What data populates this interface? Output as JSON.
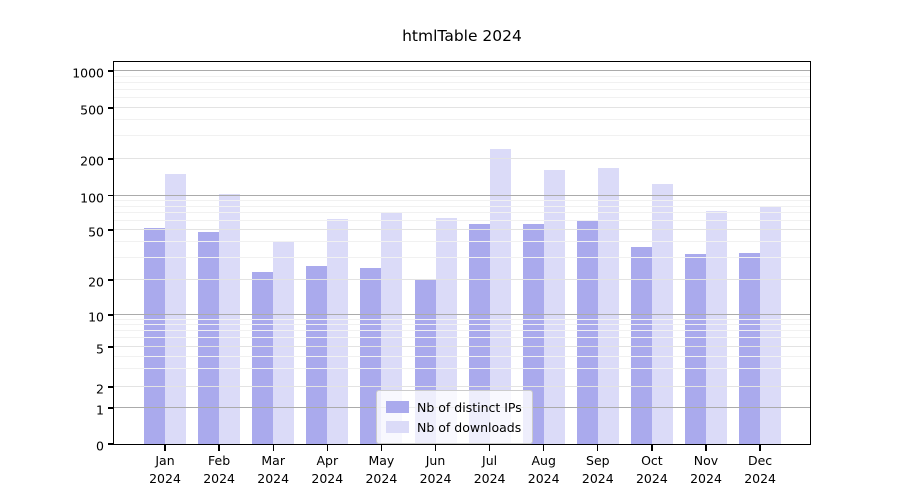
{
  "figure": {
    "title": "htmlTable 2024"
  },
  "chart_data": {
    "type": "bar",
    "title": "htmlTable 2024",
    "x_categories": [
      {
        "month": "Jan",
        "year": "2024"
      },
      {
        "month": "Feb",
        "year": "2024"
      },
      {
        "month": "Mar",
        "year": "2024"
      },
      {
        "month": "Apr",
        "year": "2024"
      },
      {
        "month": "May",
        "year": "2024"
      },
      {
        "month": "Jun",
        "year": "2024"
      },
      {
        "month": "Jul",
        "year": "2024"
      },
      {
        "month": "Aug",
        "year": "2024"
      },
      {
        "month": "Sep",
        "year": "2024"
      },
      {
        "month": "Oct",
        "year": "2024"
      },
      {
        "month": "Nov",
        "year": "2024"
      },
      {
        "month": "Dec",
        "year": "2024"
      }
    ],
    "series": [
      {
        "name": "Nb of distinct IPs",
        "color": "#aaaaed",
        "values": [
          52,
          48,
          23,
          26,
          25,
          20,
          56,
          57,
          60,
          37,
          32,
          33
        ]
      },
      {
        "name": "Nb of downloads",
        "color": "#dbdbf8",
        "values": [
          150,
          104,
          41,
          62,
          72,
          64,
          240,
          162,
          170,
          125,
          74,
          80
        ]
      }
    ],
    "y_axis": {
      "scale": "symlog",
      "ticks": [
        0,
        1,
        2,
        5,
        10,
        20,
        50,
        100,
        200,
        500,
        1000
      ],
      "decade_ticks": [
        1,
        10,
        100,
        1000
      ]
    },
    "legend": {
      "position": "lower-center"
    },
    "grid": true
  }
}
